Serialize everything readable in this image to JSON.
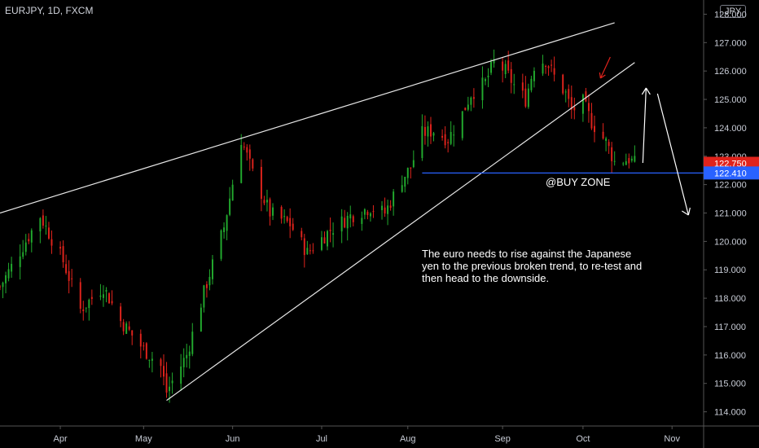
{
  "header": {
    "symbol": "EURJPY, 1D, FXCM",
    "currency": "JPY"
  },
  "colors": {
    "bull": "#22ab2e",
    "bear": "#e0231c",
    "background": "#000000",
    "trendline": "#e6e6e6",
    "support": "#2962ff",
    "badge_last": "#e0231c",
    "badge_level": "#2962ff"
  },
  "chart_data": {
    "type": "candlestick",
    "ylim": [
      113.5,
      128.5
    ],
    "yticks": [
      114,
      115,
      116,
      117,
      118,
      119,
      120,
      121,
      122,
      123,
      124,
      125,
      126,
      127,
      128
    ],
    "ytick_labels": [
      "114.000",
      "115.000",
      "116.000",
      "117.000",
      "118.000",
      "119.000",
      "120.000",
      "121.000",
      "122.000",
      "123.000",
      "124.000",
      "125.000",
      "126.000",
      "127.000",
      "128.000"
    ],
    "xaxis": {
      "start": "2018-03-12",
      "end": "2018-11-12",
      "months": [
        {
          "label": "Apr",
          "date": "2018-04-02"
        },
        {
          "label": "May",
          "date": "2018-05-01"
        },
        {
          "label": "Jun",
          "date": "2018-06-01"
        },
        {
          "label": "Jul",
          "date": "2018-07-02"
        },
        {
          "label": "Aug",
          "date": "2018-08-01"
        },
        {
          "label": "Sep",
          "date": "2018-09-03"
        },
        {
          "label": "Oct",
          "date": "2018-10-01"
        },
        {
          "label": "Nov",
          "date": "2018-11-01"
        }
      ]
    },
    "key_prices": [
      {
        "date": "2018-03-12",
        "close": 118.4
      },
      {
        "date": "2018-03-26",
        "close": 120.9
      },
      {
        "date": "2018-04-03",
        "close": 119.3
      },
      {
        "date": "2018-04-09",
        "close": 117.6
      },
      {
        "date": "2018-04-17",
        "close": 118.4
      },
      {
        "date": "2018-04-23",
        "close": 117.2
      },
      {
        "date": "2018-05-01",
        "close": 116.2
      },
      {
        "date": "2018-05-07",
        "close": 115.6
      },
      {
        "date": "2018-05-09",
        "close": 114.7
      },
      {
        "date": "2018-05-16",
        "close": 116.0
      },
      {
        "date": "2018-05-22",
        "close": 118.2
      },
      {
        "date": "2018-05-29",
        "close": 120.5
      },
      {
        "date": "2018-06-04",
        "close": 123.6
      },
      {
        "date": "2018-06-08",
        "close": 122.4
      },
      {
        "date": "2018-06-14",
        "close": 121.0
      },
      {
        "date": "2018-06-21",
        "close": 120.6
      },
      {
        "date": "2018-06-27",
        "close": 119.6
      },
      {
        "date": "2018-07-05",
        "close": 120.4
      },
      {
        "date": "2018-07-12",
        "close": 120.9
      },
      {
        "date": "2018-07-19",
        "close": 121.2
      },
      {
        "date": "2018-07-24",
        "close": 121.0
      },
      {
        "date": "2018-07-30",
        "close": 122.2
      },
      {
        "date": "2018-08-02",
        "close": 122.6
      },
      {
        "date": "2018-08-06",
        "close": 123.8
      },
      {
        "date": "2018-08-10",
        "close": 123.9
      },
      {
        "date": "2018-08-15",
        "close": 123.6
      },
      {
        "date": "2018-08-20",
        "close": 124.5
      },
      {
        "date": "2018-08-23",
        "close": 125.2
      },
      {
        "date": "2018-08-28",
        "close": 125.6
      },
      {
        "date": "2018-08-31",
        "close": 126.3
      },
      {
        "date": "2018-09-04",
        "close": 126.0
      },
      {
        "date": "2018-09-07",
        "close": 125.5
      },
      {
        "date": "2018-09-11",
        "close": 125.0
      },
      {
        "date": "2018-09-14",
        "close": 126.2
      },
      {
        "date": "2018-09-18",
        "close": 126.4
      },
      {
        "date": "2018-09-21",
        "close": 125.8
      },
      {
        "date": "2018-09-25",
        "close": 125.2
      },
      {
        "date": "2018-09-27",
        "close": 124.6
      },
      {
        "date": "2018-10-01",
        "close": 124.9
      },
      {
        "date": "2018-10-04",
        "close": 124.2
      },
      {
        "date": "2018-10-09",
        "close": 123.5
      },
      {
        "date": "2018-10-12",
        "close": 122.8
      },
      {
        "date": "2018-10-17",
        "close": 122.9
      },
      {
        "date": "2018-10-19",
        "close": 122.75
      }
    ],
    "last_price": {
      "value": 122.75,
      "label": "122.750"
    },
    "support_level": {
      "value": 122.41,
      "label": "122.410",
      "from_date": "2018-08-06"
    },
    "trendlines": [
      {
        "name": "upper",
        "from": {
          "date": "2018-03-12",
          "price": 121.0
        },
        "to": {
          "date": "2018-10-12",
          "price": 127.7
        }
      },
      {
        "name": "lower",
        "from": {
          "date": "2018-05-09",
          "price": 114.4
        },
        "to": {
          "date": "2018-10-19",
          "price": 126.3
        }
      }
    ],
    "annotations": {
      "buy_zone": "@BUY ZONE",
      "note_lines": [
        "The euro needs to rise against the Japanese",
        "yen to the previous broken trend, to re-test and",
        "then head to the downside."
      ]
    }
  }
}
